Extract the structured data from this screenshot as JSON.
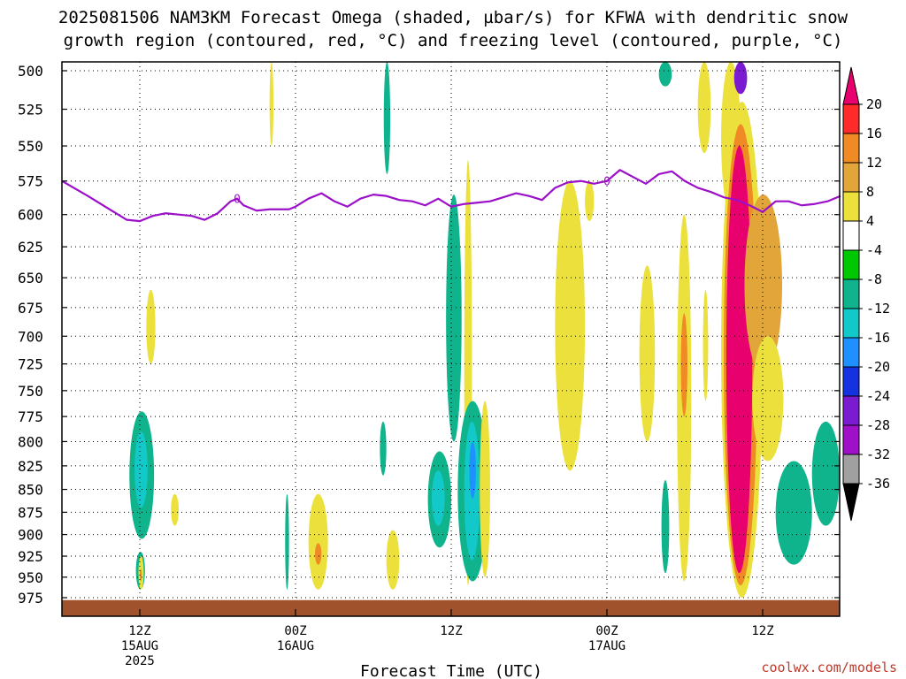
{
  "chart_data": {
    "type": "heatmap",
    "title_lines": [
      "2025081506 NAM3KM Forecast Omega (shaded, µbar/s) for KFWA with dendritic snow",
      "growth region (contoured, red, °C) and freezing level (contoured, purple, °C)"
    ],
    "xlabel": "Forecast Time (UTC)",
    "credit": "coolwx.com/models",
    "x_ticks": [
      {
        "hours": 0,
        "lines": [
          "12Z",
          "15AUG",
          "2025"
        ]
      },
      {
        "hours": 12,
        "lines": [
          "00Z",
          "16AUG"
        ]
      },
      {
        "hours": 24,
        "lines": [
          "12Z"
        ]
      },
      {
        "hours": 36,
        "lines": [
          "00Z",
          "17AUG"
        ]
      },
      {
        "hours": 48,
        "lines": [
          "12Z"
        ]
      }
    ],
    "xlim_hours": [
      -6,
      54
    ],
    "y_ticks": [
      500,
      525,
      550,
      575,
      600,
      625,
      650,
      675,
      700,
      725,
      750,
      775,
      800,
      825,
      850,
      875,
      900,
      925,
      950,
      975
    ],
    "ylim_hPa": [
      492,
      990
    ],
    "y_scale": "log-pressure (inverted)",
    "grid": "dotted",
    "colorbar": {
      "labels": [
        "20",
        "16",
        "12",
        "8",
        "4",
        "-4",
        "-8",
        "-12",
        "-16",
        "-20",
        "-24",
        "-28",
        "-32",
        "-36"
      ],
      "colors": [
        "#e8006e",
        "#ff2a2a",
        "#f08a24",
        "#e1a53a",
        "#ece13c",
        "#ffffff",
        "#00c800",
        "#10b48c",
        "#12c8c8",
        "#1e90ff",
        "#1432e0",
        "#7a1bd2",
        "#a010c8",
        "#a0a0a0",
        "#000000"
      ]
    },
    "freezing_level": {
      "label": "0",
      "color": "#9b10c8",
      "points": [
        [
          -6,
          575
        ],
        [
          -4,
          586
        ],
        [
          -2,
          598
        ],
        [
          -1,
          604
        ],
        [
          0,
          605
        ],
        [
          1,
          601
        ],
        [
          2,
          599
        ],
        [
          3,
          600
        ],
        [
          4,
          601
        ],
        [
          5,
          604
        ],
        [
          6,
          599
        ],
        [
          7,
          590
        ],
        [
          7.5,
          588
        ],
        [
          8,
          593
        ],
        [
          9,
          597
        ],
        [
          10,
          596
        ],
        [
          11.5,
          596
        ],
        [
          12,
          594
        ],
        [
          13,
          588
        ],
        [
          14,
          584
        ],
        [
          15,
          590
        ],
        [
          16,
          594
        ],
        [
          17,
          588
        ],
        [
          18,
          585
        ],
        [
          19,
          586
        ],
        [
          20,
          589
        ],
        [
          21,
          590
        ],
        [
          22,
          593
        ],
        [
          23,
          588
        ],
        [
          24,
          594
        ],
        [
          25,
          592
        ],
        [
          26,
          591
        ],
        [
          27,
          590
        ],
        [
          28,
          587
        ],
        [
          29,
          584
        ],
        [
          30,
          586
        ],
        [
          31,
          589
        ],
        [
          32,
          580
        ],
        [
          33,
          576
        ],
        [
          34,
          575
        ],
        [
          35,
          577
        ],
        [
          36,
          575
        ],
        [
          37,
          567
        ],
        [
          38,
          572
        ],
        [
          39,
          577
        ],
        [
          40,
          570
        ],
        [
          41,
          568
        ],
        [
          42,
          575
        ],
        [
          43,
          580
        ],
        [
          44,
          583
        ],
        [
          45,
          587
        ],
        [
          46,
          589
        ],
        [
          47,
          593
        ],
        [
          48,
          598
        ],
        [
          49,
          590
        ],
        [
          50,
          590
        ],
        [
          51,
          593
        ],
        [
          52,
          592
        ],
        [
          53,
          590
        ],
        [
          54,
          586
        ]
      ]
    },
    "omega_regions": [
      {
        "v": -8,
        "x": [
          -0.8,
          1.1
        ],
        "p": [
          770,
          905
        ]
      },
      {
        "v": -12,
        "x": [
          -0.4,
          0.6
        ],
        "p": [
          790,
          870
        ]
      },
      {
        "v": -8,
        "x": [
          -0.3,
          0.4
        ],
        "p": [
          920,
          965
        ]
      },
      {
        "v": 4,
        "x": [
          -0.1,
          0.3
        ],
        "p": [
          925,
          965
        ]
      },
      {
        "v": 12,
        "x": [
          0.0,
          0.15
        ],
        "p": [
          940,
          955
        ]
      },
      {
        "v": 4,
        "x": [
          0.5,
          1.2
        ],
        "p": [
          660,
          725
        ]
      },
      {
        "v": 4,
        "x": [
          2.4,
          3.0
        ],
        "p": [
          855,
          890
        ]
      },
      {
        "v": 4,
        "x": [
          10.0,
          10.3
        ],
        "p": [
          492,
          550
        ]
      },
      {
        "v": -8,
        "x": [
          11.2,
          11.5
        ],
        "p": [
          855,
          965
        ]
      },
      {
        "v": 4,
        "x": [
          13.0,
          14.5
        ],
        "p": [
          855,
          965
        ]
      },
      {
        "v": 12,
        "x": [
          13.5,
          14.0
        ],
        "p": [
          910,
          935
        ]
      },
      {
        "v": -8,
        "x": [
          18.8,
          19.3
        ],
        "p": [
          492,
          570
        ]
      },
      {
        "v": -8,
        "x": [
          18.5,
          19.0
        ],
        "p": [
          780,
          835
        ]
      },
      {
        "v": 4,
        "x": [
          19.0,
          20.0
        ],
        "p": [
          895,
          965
        ]
      },
      {
        "v": -8,
        "x": [
          22.2,
          24.0
        ],
        "p": [
          810,
          915
        ]
      },
      {
        "v": -12,
        "x": [
          22.5,
          23.5
        ],
        "p": [
          830,
          890
        ]
      },
      {
        "v": -8,
        "x": [
          23.6,
          24.8
        ],
        "p": [
          585,
          800
        ]
      },
      {
        "v": 4,
        "x": [
          25.0,
          25.6
        ],
        "p": [
          560,
          960
        ]
      },
      {
        "v": -8,
        "x": [
          24.5,
          26.8
        ],
        "p": [
          760,
          955
        ]
      },
      {
        "v": -12,
        "x": [
          25.0,
          26.2
        ],
        "p": [
          780,
          930
        ]
      },
      {
        "v": -16,
        "x": [
          25.4,
          25.9
        ],
        "p": [
          800,
          860
        ]
      },
      {
        "v": 4,
        "x": [
          26.2,
          27.0
        ],
        "p": [
          760,
          950
        ]
      },
      {
        "v": 4,
        "x": [
          32.0,
          34.3
        ],
        "p": [
          575,
          830
        ]
      },
      {
        "v": 4,
        "x": [
          34.3,
          35.0
        ],
        "p": [
          575,
          605
        ]
      },
      {
        "v": 4,
        "x": [
          38.5,
          39.7
        ],
        "p": [
          640,
          800
        ]
      },
      {
        "v": -8,
        "x": [
          40.0,
          41.0
        ],
        "p": [
          492,
          510
        ]
      },
      {
        "v": -8,
        "x": [
          40.2,
          40.8
        ],
        "p": [
          840,
          945
        ]
      },
      {
        "v": 4,
        "x": [
          41.4,
          42.5
        ],
        "p": [
          600,
          955
        ]
      },
      {
        "v": 12,
        "x": [
          41.7,
          42.2
        ],
        "p": [
          680,
          775
        ]
      },
      {
        "v": 4,
        "x": [
          43.0,
          44.0
        ],
        "p": [
          492,
          555
        ]
      },
      {
        "v": 4,
        "x": [
          43.4,
          43.8
        ],
        "p": [
          660,
          760
        ]
      },
      {
        "v": 4,
        "x": [
          44.8,
          46.3
        ],
        "p": [
          492,
          600
        ]
      },
      {
        "v": 4,
        "x": [
          44.8,
          48.0
        ],
        "p": [
          520,
          975
        ]
      },
      {
        "v": 12,
        "x": [
          45.0,
          47.6
        ],
        "p": [
          535,
          960
        ]
      },
      {
        "v": 20,
        "x": [
          45.2,
          47.2
        ],
        "p": [
          550,
          945
        ]
      },
      {
        "v": -24,
        "x": [
          45.8,
          46.8
        ],
        "p": [
          492,
          515
        ]
      },
      {
        "v": 8,
        "x": [
          46.6,
          49.5
        ],
        "p": [
          585,
          735
        ]
      },
      {
        "v": 4,
        "x": [
          47.2,
          49.6
        ],
        "p": [
          700,
          820
        ]
      },
      {
        "v": -8,
        "x": [
          49.0,
          51.8
        ],
        "p": [
          820,
          935
        ]
      },
      {
        "v": -8,
        "x": [
          51.8,
          54.0
        ],
        "p": [
          780,
          890
        ]
      }
    ],
    "ground": {
      "color": "#a0522d",
      "p_top": 978
    }
  }
}
